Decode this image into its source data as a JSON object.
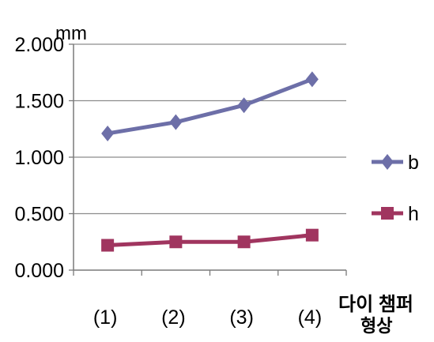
{
  "chart_data": {
    "type": "line",
    "categories": [
      "(1)",
      "(2)",
      "(3)",
      "(4)"
    ],
    "y_unit": "mm",
    "x_axis_title": [
      "다이 챔퍼",
      "형상"
    ],
    "ylim": [
      0,
      2
    ],
    "y_ticks": [
      "0.000",
      "0.500",
      "1.000",
      "1.500",
      "2.000"
    ],
    "y_tick_values": [
      0,
      0.5,
      1.0,
      1.5,
      2.0
    ],
    "grid": true,
    "legend_position": "right",
    "series": [
      {
        "name": "b",
        "values": [
          1.21,
          1.31,
          1.46,
          1.69
        ],
        "color": "#6d6fa8",
        "marker": "diamond"
      },
      {
        "name": "h",
        "values": [
          0.22,
          0.25,
          0.25,
          0.31
        ],
        "color": "#a0355f",
        "marker": "square"
      }
    ]
  }
}
